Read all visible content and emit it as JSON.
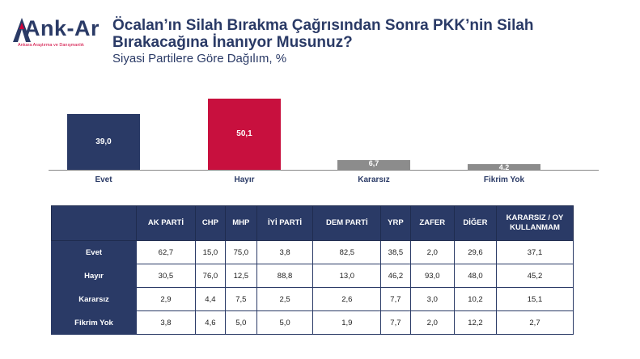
{
  "logo": {
    "name": "Ank-Ar",
    "tagline": "Ankara Araştırma ve Danışmanlık"
  },
  "header": {
    "title_line1": "Öcalan’ın Silah Bırakma Çağrısından Sonra PKK’nin Silah",
    "title_line2": "Bırakacağına İnanıyor Musunuz?",
    "subtitle": "Siyasi Partilere Göre Dağılım, %"
  },
  "colors": {
    "navy": "#2a3a66",
    "crimson": "#c8103e",
    "gray": "#8c8c8c"
  },
  "chart_data": {
    "type": "bar",
    "categories": [
      "Evet",
      "Hayır",
      "Kararsız",
      "Fikrim Yok"
    ],
    "values": [
      39.0,
      50.1,
      6.7,
      4.2
    ],
    "value_labels": [
      "39,0",
      "50,1",
      "6,7",
      "4,2"
    ],
    "bar_colors": [
      "#2a3a66",
      "#c8103e",
      "#8c8c8c",
      "#8c8c8c"
    ],
    "title": "",
    "xlabel": "",
    "ylabel": "",
    "ylim": [
      0,
      50.1
    ],
    "grid": false
  },
  "table": {
    "columns": [
      "",
      "AK PARTİ",
      "CHP",
      "MHP",
      "İYİ PARTİ",
      "DEM PARTİ",
      "YRP",
      "ZAFER",
      "DİĞER",
      "KARARSIZ / OY KULLANMAM"
    ],
    "rows": [
      {
        "label": "Evet",
        "values": [
          "62,7",
          "15,0",
          "75,0",
          "3,8",
          "82,5",
          "38,5",
          "2,0",
          "29,6",
          "37,1"
        ]
      },
      {
        "label": "Hayır",
        "values": [
          "30,5",
          "76,0",
          "12,5",
          "88,8",
          "13,0",
          "46,2",
          "93,0",
          "48,0",
          "45,2"
        ]
      },
      {
        "label": "Kararsız",
        "values": [
          "2,9",
          "4,4",
          "7,5",
          "2,5",
          "2,6",
          "7,7",
          "3,0",
          "10,2",
          "15,1"
        ]
      },
      {
        "label": "Fikrim Yok",
        "values": [
          "3,8",
          "4,6",
          "5,0",
          "5,0",
          "1,9",
          "7,7",
          "2,0",
          "12,2",
          "2,7"
        ]
      }
    ]
  }
}
